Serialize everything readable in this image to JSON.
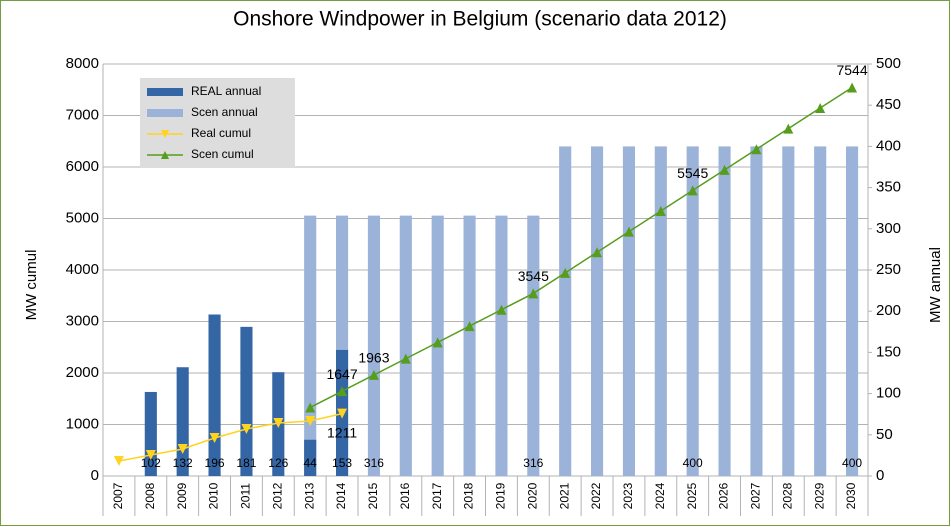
{
  "chart_data": {
    "type": "bar",
    "title": "Onshore Windpower in Belgium (scenario data 2012)",
    "categories": [
      "2007",
      "2008",
      "2009",
      "2010",
      "2011",
      "2012",
      "2013",
      "2014",
      "2015",
      "2016",
      "2017",
      "2018",
      "2019",
      "2020",
      "2021",
      "2022",
      "2023",
      "2024",
      "2025",
      "2026",
      "2027",
      "2028",
      "2029",
      "2030"
    ],
    "y_label": "MW cumul",
    "y2_label": "MW annual",
    "ylim": [
      0,
      8000
    ],
    "yticks": [
      0,
      1000,
      2000,
      3000,
      4000,
      5000,
      6000,
      7000,
      8000
    ],
    "y2lim": [
      0,
      500
    ],
    "y2ticks": [
      0,
      50,
      100,
      150,
      200,
      250,
      300,
      350,
      400,
      450,
      500
    ],
    "grid": true,
    "legend": "top-left",
    "series": [
      {
        "name": "REAL annual",
        "type": "bar",
        "axis": "y2",
        "color": "#3465a4",
        "values": [
          null,
          102,
          132,
          196,
          181,
          126,
          44,
          153,
          null,
          null,
          null,
          null,
          null,
          null,
          null,
          null,
          null,
          null,
          null,
          null,
          null,
          null,
          null,
          null
        ],
        "value_labels": [
          null,
          "102",
          "132",
          "196",
          "181",
          "126",
          "44",
          "153",
          null,
          null,
          null,
          null,
          null,
          null,
          null,
          null,
          null,
          null,
          null,
          null,
          null,
          null,
          null,
          null
        ]
      },
      {
        "name": "Scen annual",
        "type": "bar",
        "axis": "y2",
        "color": "#9cb3d9",
        "values": [
          null,
          null,
          null,
          null,
          null,
          null,
          316,
          316,
          316,
          316,
          316,
          316,
          316,
          316,
          400,
          400,
          400,
          400,
          400,
          400,
          400,
          400,
          400,
          400
        ],
        "value_labels": [
          null,
          null,
          null,
          null,
          null,
          null,
          null,
          null,
          "316",
          null,
          null,
          null,
          null,
          "316",
          null,
          null,
          null,
          null,
          "400",
          null,
          null,
          null,
          null,
          "400"
        ]
      },
      {
        "name": "Real cumul",
        "type": "line",
        "marker": "triangle-down",
        "color": "#ffd320",
        "values": [
          291,
          408,
          524,
          738,
          913,
          1029,
          1068,
          1211,
          null,
          null,
          null,
          null,
          null,
          null,
          null,
          null,
          null,
          null,
          null,
          null,
          null,
          null,
          null,
          null
        ],
        "value_labels": [
          null,
          null,
          null,
          null,
          null,
          null,
          null,
          "1211",
          null,
          null,
          null,
          null,
          null,
          null,
          null,
          null,
          null,
          null,
          null,
          null,
          null,
          null,
          null,
          null
        ]
      },
      {
        "name": "Scen cumul",
        "type": "line",
        "marker": "triangle-up",
        "color": "#579d1c",
        "values": [
          null,
          null,
          null,
          null,
          null,
          null,
          1331,
          1647,
          1963,
          2279,
          2595,
          2911,
          3228,
          3545,
          3945,
          4345,
          4745,
          5145,
          5545,
          5945,
          6345,
          6745,
          7145,
          7544
        ],
        "value_labels": [
          null,
          null,
          null,
          null,
          null,
          null,
          null,
          "1647",
          "1963",
          null,
          null,
          null,
          null,
          "3545",
          null,
          null,
          null,
          null,
          "5545",
          null,
          null,
          null,
          null,
          "7544"
        ]
      }
    ]
  }
}
